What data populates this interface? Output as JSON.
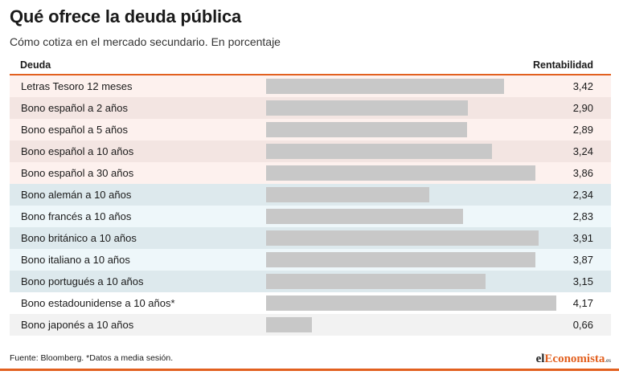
{
  "title": "Qué ofrece la deuda pública",
  "subtitle": "Cómo cotiza en el mercado secundario. En porcentaje",
  "header": {
    "name": "Deuda",
    "value": "Rentabilidad"
  },
  "footer": {
    "source": "Fuente: Bloomberg. *Datos a media sesión.",
    "brand_pre": "el",
    "brand_accent": "Economista",
    "brand_tld": ".es"
  },
  "colors": {
    "accent": "#e2601f",
    "bar": "#c8c8c8",
    "spanish_rows": [
      "#fdf1ee",
      "#f3e5e2"
    ],
    "foreign_rows": [
      "#dde9ed",
      "#eef7fa"
    ],
    "other_rows": [
      "#ffffff",
      "#f2f2f2"
    ]
  },
  "chart_data": {
    "type": "bar",
    "orientation": "horizontal",
    "title": "Qué ofrece la deuda pública",
    "subtitle": "Cómo cotiza en el mercado secundario. En porcentaje",
    "categories": [
      "Letras Tesoro 12 meses",
      "Bono español a 2 años",
      "Bono español a 5 años",
      "Bono español a 10 años",
      "Bono español a 30 años",
      "Bono alemán a 10 años",
      "Bono francés a 10 años",
      "Bono británico a 10 años",
      "Bono italiano a 10 años",
      "Bono portugués a 10 años",
      "Bono estadounidense a 10 años*",
      "Bono japonés a 10 años"
    ],
    "values": [
      3.42,
      2.9,
      2.89,
      3.24,
      3.86,
      2.34,
      2.83,
      3.91,
      3.87,
      3.15,
      4.17,
      0.66
    ],
    "value_labels": [
      "3,42",
      "2,90",
      "2,89",
      "3,24",
      "3,86",
      "2,34",
      "2,83",
      "3,91",
      "3,87",
      "3,15",
      "4,17",
      "0,66"
    ],
    "groups": [
      "spanish",
      "spanish",
      "spanish",
      "spanish",
      "spanish",
      "foreign",
      "foreign",
      "foreign",
      "foreign",
      "foreign",
      "other",
      "other"
    ],
    "xlim": [
      0,
      4.5
    ],
    "grid": false,
    "legend": "none"
  }
}
